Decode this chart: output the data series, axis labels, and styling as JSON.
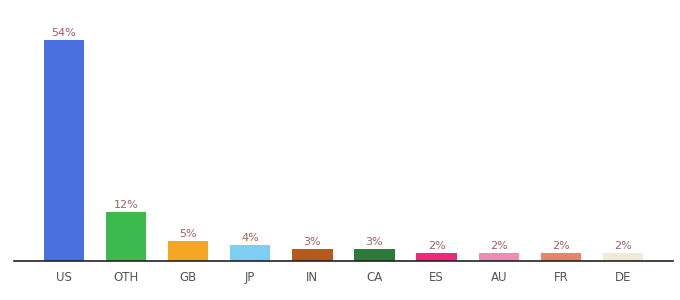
{
  "categories": [
    "US",
    "OTH",
    "GB",
    "JP",
    "IN",
    "CA",
    "ES",
    "AU",
    "FR",
    "DE"
  ],
  "values": [
    54,
    12,
    5,
    4,
    3,
    3,
    2,
    2,
    2,
    2
  ],
  "bar_colors": [
    "#4a6fdf",
    "#3dba4e",
    "#f5a623",
    "#7ecef4",
    "#b35a1e",
    "#2d7a3a",
    "#f0287a",
    "#f08cb4",
    "#e8846e",
    "#f0ead8"
  ],
  "label_color": "#a06060",
  "xlabel_color": "#555555",
  "background_color": "#ffffff",
  "ylim": [
    0,
    58
  ],
  "bar_width": 0.65,
  "label_fontsize": 8.0,
  "xlabel_fontsize": 8.5,
  "fig_width": 6.8,
  "fig_height": 3.0,
  "dpi": 100
}
